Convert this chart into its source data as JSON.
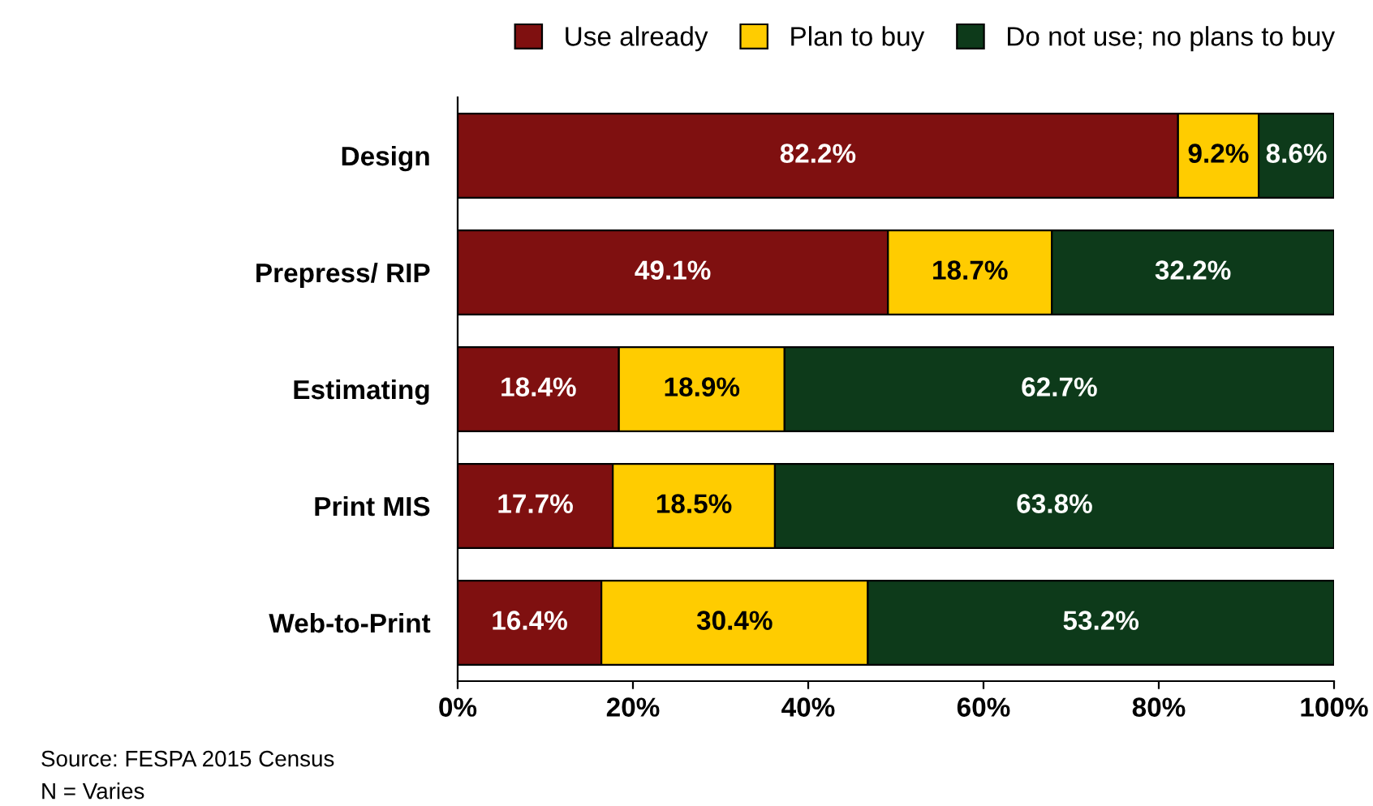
{
  "chart_data": {
    "type": "bar",
    "orientation": "horizontal",
    "stacked": true,
    "categories": [
      "Design",
      "Prepress/ RIP",
      "Estimating",
      "Print MIS",
      "Web-to-Print"
    ],
    "series": [
      {
        "name": "Use already",
        "color": "#7f1010",
        "values": [
          82.2,
          49.1,
          18.4,
          17.7,
          16.4
        ],
        "value_labels": [
          "82.2%",
          "49.1%",
          "18.4%",
          "17.7%",
          "16.4%"
        ]
      },
      {
        "name": "Plan to buy",
        "color": "#ffcc00",
        "values": [
          9.2,
          18.7,
          18.9,
          18.5,
          30.4
        ],
        "value_labels": [
          "9.2%",
          "18.7%",
          "18.9%",
          "18.5%",
          "30.4%"
        ]
      },
      {
        "name": "Do not use; no plans to buy",
        "color": "#0d3a1a",
        "values": [
          8.6,
          32.2,
          62.7,
          63.8,
          53.2
        ],
        "value_labels": [
          "8.6%",
          "32.2%",
          "62.7%",
          "63.8%",
          "53.2%"
        ]
      }
    ],
    "xlim": [
      0,
      100
    ],
    "xticks": [
      {
        "value": 0,
        "label": "0%"
      },
      {
        "value": 20,
        "label": "20%"
      },
      {
        "value": 40,
        "label": "40%"
      },
      {
        "value": 60,
        "label": "60%"
      },
      {
        "value": 80,
        "label": "80%"
      },
      {
        "value": 100,
        "label": "100%"
      }
    ],
    "legend": "top",
    "annotations": [
      "Source: FESPA 2015 Census",
      "N = Varies"
    ]
  }
}
